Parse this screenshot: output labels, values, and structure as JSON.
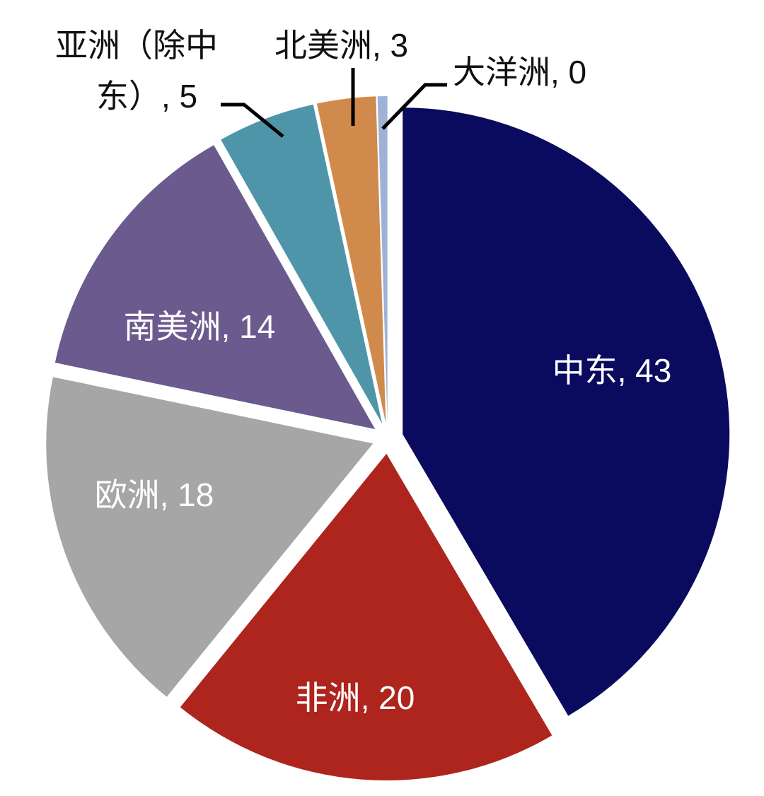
{
  "chart_data": {
    "type": "pie",
    "title": "",
    "exploded": true,
    "start_angle_deg": 0,
    "direction": "clockwise",
    "slices": [
      {
        "label": "中东",
        "value": 43,
        "color": "#0a0a5e",
        "label_position": "inside",
        "display": "中东, 43"
      },
      {
        "label": "非洲",
        "value": 20,
        "color": "#ad251d",
        "label_position": "inside",
        "display": "非洲, 20"
      },
      {
        "label": "欧洲",
        "value": 18,
        "color": "#a6a6a6",
        "label_position": "inside",
        "display": "欧洲, 18"
      },
      {
        "label": "南美洲",
        "value": 14,
        "color": "#6a5a8e",
        "label_position": "inside",
        "display": "南美洲, 14"
      },
      {
        "label": "亚洲（除中东）",
        "value": 5,
        "color": "#4f95aa",
        "label_position": "outside",
        "display_lines": [
          "亚洲（除中",
          "东）, 5"
        ]
      },
      {
        "label": "北美洲",
        "value": 3,
        "color": "#d08a4c",
        "label_position": "outside",
        "display": "北美洲, 3"
      },
      {
        "label": "大洋洲",
        "value": 0,
        "color": "#9fb2d6",
        "label_position": "outside",
        "display": "大洋洲, 0"
      }
    ],
    "legend": null,
    "grid": false
  }
}
